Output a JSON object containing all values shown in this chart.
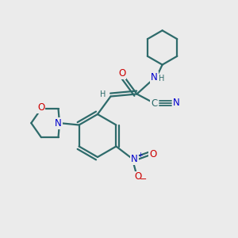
{
  "bg_color": "#ebebeb",
  "bond_color": "#2e6b6b",
  "bond_width": 1.6,
  "atom_colors": {
    "C": "#2e6b6b",
    "N": "#0000cc",
    "O": "#cc0000",
    "H": "#2e6b6b"
  },
  "font_size_atom": 8.5,
  "font_size_small": 7.0
}
